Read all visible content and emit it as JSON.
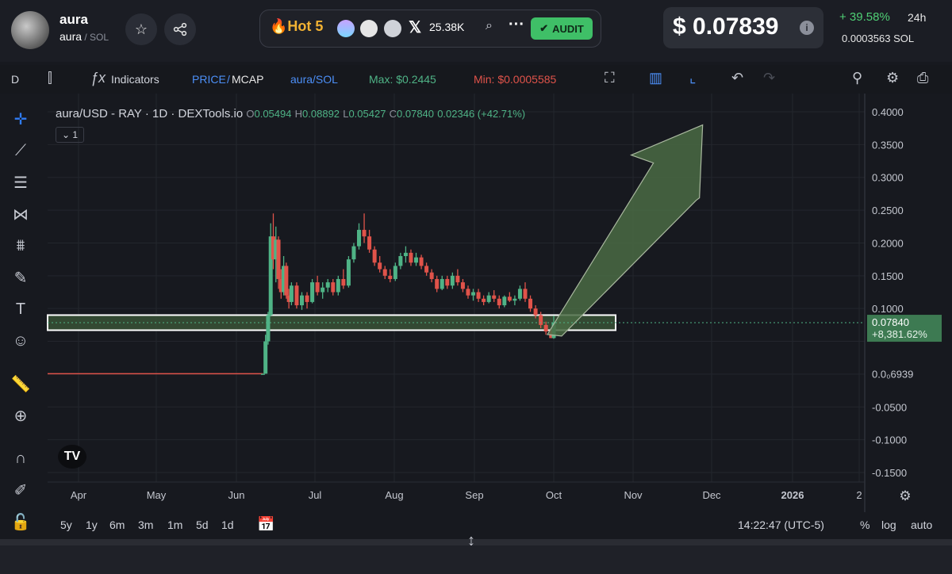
{
  "token": {
    "name": "aura",
    "pair_base": "aura",
    "pair_quote": "SOL",
    "hot_label": "Hot 5",
    "followers": "25.38K",
    "audit_label": "AUDIT",
    "price": "$ 0.07839",
    "change_24h": "+ 39.58%",
    "change_period": "24h",
    "price_sol": "0.0003563",
    "sol_label": "SOL"
  },
  "toolbar": {
    "interval": "D",
    "indicators": "Indicators",
    "price_label": "PRICE",
    "mcap_label": "MCAP",
    "pair": "aura/SOL",
    "max": "Max: $0.2445",
    "min": "Min: $0.0005585"
  },
  "legend": {
    "symbol": "aura/USD - RAY · 1D · DEXTools.io",
    "o_label": "O",
    "o": "0.05494",
    "h_label": "H",
    "h": "0.08892",
    "l_label": "L",
    "l": "0.05427",
    "c_label": "C",
    "c": "0.07840",
    "change": "0.02346 (+42.71%)",
    "indicator_count": "1"
  },
  "colors": {
    "up": "#4fb386",
    "down": "#e0534a",
    "zone_fill": "#3d5a3a",
    "arrow_fill": "#4a6b44",
    "price_tag": "#3d7a52"
  },
  "chart_data": {
    "type": "candlestick",
    "x_ticks": [
      "Apr",
      "May",
      "Jun",
      "Jul",
      "Aug",
      "Sep",
      "Oct",
      "Nov",
      "Dec",
      "2026",
      "2"
    ],
    "y_ticks": [
      "0.4000",
      "0.3500",
      "0.3000",
      "0.2500",
      "0.2000",
      "0.1500",
      "0.1000",
      "0.0₀6939",
      "-0.0500",
      "-0.1000",
      "-0.1500"
    ],
    "ylim": [
      -0.17,
      0.41
    ],
    "last_price": "0.07840",
    "last_change": "+8,381.62%",
    "baseline_value": 0.0007,
    "zone": {
      "x_from": "Mar 24",
      "x_to": "Oct 26",
      "y_low": 0.067,
      "y_high": 0.09
    },
    "arrow": {
      "from": [
        "Oct 1",
        0.075
      ],
      "to": [
        "Dec 1",
        0.38
      ]
    },
    "series": [
      {
        "values": [
          [
            "Jun 11",
            0.0007,
            0.0007,
            0.0007,
            0.0007
          ],
          [
            "Jun 12",
            0.0007,
            0.06,
            0.0006,
            0.05
          ],
          [
            "Jun 13",
            0.05,
            0.095,
            0.045,
            0.09
          ],
          [
            "Jun 14",
            0.09,
            0.23,
            0.088,
            0.21
          ],
          [
            "Jun 15",
            0.21,
            0.245,
            0.16,
            0.175
          ],
          [
            "Jun 16",
            0.175,
            0.225,
            0.14,
            0.205
          ],
          [
            "Jun 17",
            0.205,
            0.21,
            0.13,
            0.145
          ],
          [
            "Jun 18",
            0.145,
            0.16,
            0.115,
            0.125
          ],
          [
            "Jun 19",
            0.125,
            0.18,
            0.12,
            0.165
          ],
          [
            "Jun 20",
            0.165,
            0.17,
            0.115,
            0.12
          ],
          [
            "Jun 21",
            0.12,
            0.13,
            0.1,
            0.11
          ],
          [
            "Jun 22",
            0.11,
            0.14,
            0.105,
            0.135
          ],
          [
            "Jun 24",
            0.135,
            0.14,
            0.1,
            0.105
          ],
          [
            "Jun 26",
            0.105,
            0.125,
            0.098,
            0.12
          ],
          [
            "Jun 28",
            0.12,
            0.125,
            0.1,
            0.11
          ],
          [
            "Jun 30",
            0.11,
            0.145,
            0.108,
            0.14
          ],
          [
            "Jul 2",
            0.14,
            0.15,
            0.12,
            0.125
          ],
          [
            "Jul 4",
            0.125,
            0.14,
            0.115,
            0.132
          ],
          [
            "Jul 6",
            0.132,
            0.145,
            0.125,
            0.14
          ],
          [
            "Jul 8",
            0.14,
            0.145,
            0.12,
            0.125
          ],
          [
            "Jul 10",
            0.125,
            0.15,
            0.12,
            0.145
          ],
          [
            "Jul 12",
            0.145,
            0.16,
            0.13,
            0.135
          ],
          [
            "Jul 14",
            0.135,
            0.18,
            0.132,
            0.175
          ],
          [
            "Jul 16",
            0.175,
            0.2,
            0.17,
            0.195
          ],
          [
            "Jul 18",
            0.195,
            0.23,
            0.19,
            0.22
          ],
          [
            "Jul 20",
            0.22,
            0.245,
            0.2,
            0.21
          ],
          [
            "Jul 22",
            0.21,
            0.22,
            0.185,
            0.19
          ],
          [
            "Jul 24",
            0.19,
            0.195,
            0.165,
            0.17
          ],
          [
            "Jul 26",
            0.17,
            0.18,
            0.155,
            0.16
          ],
          [
            "Jul 28",
            0.16,
            0.165,
            0.145,
            0.15
          ],
          [
            "Jul 30",
            0.15,
            0.16,
            0.14,
            0.145
          ],
          [
            "Aug 1",
            0.145,
            0.17,
            0.142,
            0.165
          ],
          [
            "Aug 3",
            0.165,
            0.185,
            0.16,
            0.18
          ],
          [
            "Aug 5",
            0.18,
            0.195,
            0.17,
            0.185
          ],
          [
            "Aug 7",
            0.185,
            0.19,
            0.165,
            0.17
          ],
          [
            "Aug 9",
            0.17,
            0.185,
            0.165,
            0.178
          ],
          [
            "Aug 11",
            0.178,
            0.182,
            0.16,
            0.165
          ],
          [
            "Aug 13",
            0.165,
            0.17,
            0.15,
            0.155
          ],
          [
            "Aug 15",
            0.155,
            0.16,
            0.14,
            0.145
          ],
          [
            "Aug 17",
            0.145,
            0.15,
            0.125,
            0.13
          ],
          [
            "Aug 19",
            0.13,
            0.15,
            0.128,
            0.145
          ],
          [
            "Aug 21",
            0.145,
            0.15,
            0.13,
            0.135
          ],
          [
            "Aug 23",
            0.135,
            0.155,
            0.13,
            0.15
          ],
          [
            "Aug 25",
            0.15,
            0.16,
            0.135,
            0.14
          ],
          [
            "Aug 27",
            0.14,
            0.145,
            0.125,
            0.13
          ],
          [
            "Aug 29",
            0.13,
            0.135,
            0.115,
            0.12
          ],
          [
            "Aug 31",
            0.12,
            0.13,
            0.112,
            0.125
          ],
          [
            "Sep 2",
            0.125,
            0.13,
            0.11,
            0.115
          ],
          [
            "Sep 4",
            0.115,
            0.12,
            0.105,
            0.11
          ],
          [
            "Sep 6",
            0.11,
            0.125,
            0.108,
            0.12
          ],
          [
            "Sep 8",
            0.12,
            0.128,
            0.11,
            0.115
          ],
          [
            "Sep 10",
            0.115,
            0.12,
            0.1,
            0.105
          ],
          [
            "Sep 12",
            0.105,
            0.12,
            0.102,
            0.118
          ],
          [
            "Sep 14",
            0.118,
            0.125,
            0.11,
            0.112
          ],
          [
            "Sep 16",
            0.112,
            0.12,
            0.105,
            0.115
          ],
          [
            "Sep 18",
            0.115,
            0.135,
            0.112,
            0.13
          ],
          [
            "Sep 20",
            0.13,
            0.14,
            0.11,
            0.115
          ],
          [
            "Sep 22",
            0.115,
            0.12,
            0.095,
            0.1
          ],
          [
            "Sep 24",
            0.1,
            0.105,
            0.085,
            0.09
          ],
          [
            "Sep 26",
            0.09,
            0.095,
            0.07,
            0.075
          ],
          [
            "Sep 28",
            0.075,
            0.08,
            0.06,
            0.065
          ],
          [
            "Sep 30",
            0.065,
            0.07,
            0.055,
            0.055
          ],
          [
            "Oct 1",
            0.055,
            0.089,
            0.054,
            0.0784
          ]
        ]
      }
    ]
  },
  "ranges": [
    "5y",
    "1y",
    "6m",
    "3m",
    "1m",
    "5d",
    "1d"
  ],
  "clock": "14:22:47 (UTC-5)",
  "scale_opts": {
    "pct": "%",
    "log": "log",
    "auto": "auto"
  }
}
